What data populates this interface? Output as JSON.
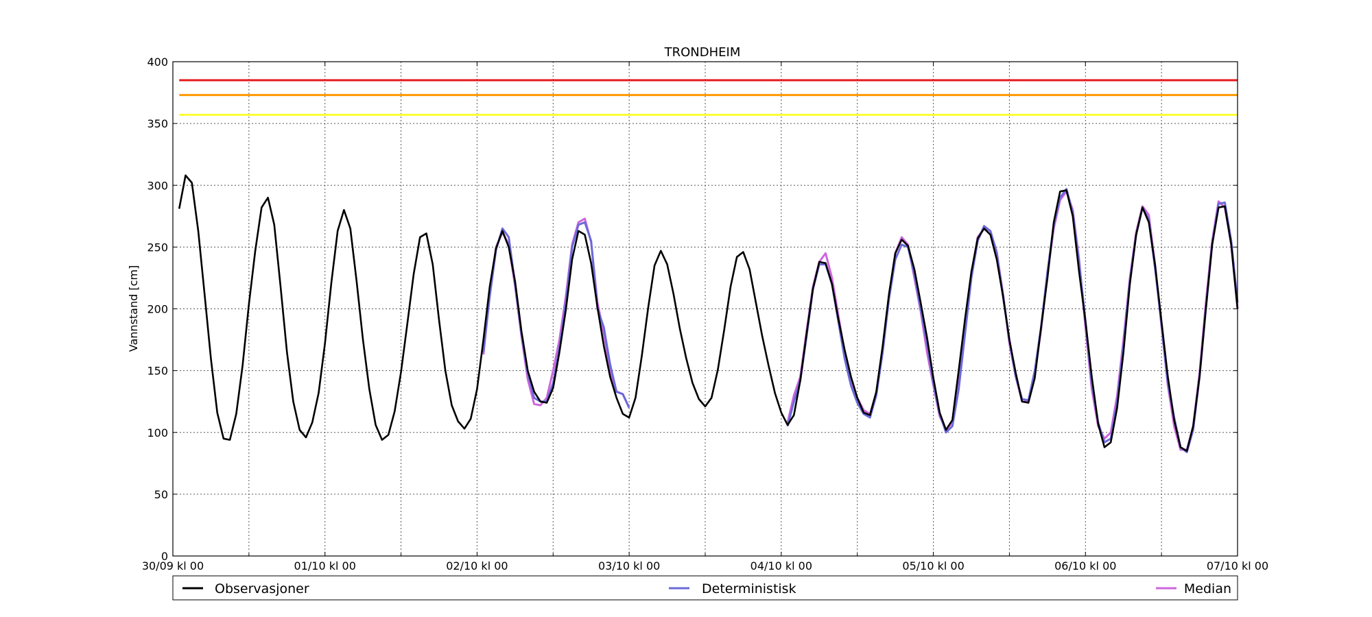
{
  "chart_data": {
    "type": "line",
    "title": "TRONDHEIM",
    "xlabel": "",
    "ylabel": "Vannstand [cm]",
    "ylim": [
      0,
      400
    ],
    "yticks": [
      0,
      50,
      100,
      150,
      200,
      250,
      300,
      350,
      400
    ],
    "xlim_hours": [
      0,
      168
    ],
    "xticks": [
      {
        "hour": 0,
        "label": "30/09 kl 00"
      },
      {
        "hour": 24,
        "label": "01/10 kl 00"
      },
      {
        "hour": 48,
        "label": "02/10 kl 00"
      },
      {
        "hour": 72,
        "label": "03/10 kl 00"
      },
      {
        "hour": 96,
        "label": "04/10 kl 00"
      },
      {
        "hour": 120,
        "label": "05/10 kl 00"
      },
      {
        "hour": 144,
        "label": "06/10 kl 00"
      },
      {
        "hour": 168,
        "label": "07/10 kl 00"
      }
    ],
    "minor_xgrid_hours": [
      12,
      36,
      60,
      84,
      108,
      132,
      156
    ],
    "grid": true,
    "legend_position": "bottom",
    "thresholds": [
      {
        "value": 385,
        "color": "#e41a1c"
      },
      {
        "value": 373,
        "color": "#ff9900"
      },
      {
        "value": 357,
        "color": "#ffff33"
      }
    ],
    "series": [
      {
        "name": "Observasjoner",
        "color": "#000000",
        "x_start_hour": 1,
        "x_step_hour": 1,
        "values": [
          281,
          308,
          302,
          263,
          212,
          160,
          116,
          95,
          94,
          115,
          154,
          204,
          247,
          282,
          290,
          268,
          218,
          165,
          125,
          102,
          96,
          108,
          132,
          172,
          221,
          263,
          280,
          265,
          222,
          175,
          135,
          106,
          94,
          98,
          117,
          149,
          188,
          228,
          258,
          261,
          236,
          191,
          150,
          122,
          109,
          103,
          111,
          135,
          175,
          218,
          249,
          263,
          250,
          222,
          182,
          150,
          133,
          125,
          124,
          136,
          165,
          199,
          240,
          263,
          260,
          237,
          201,
          170,
          145,
          128,
          115,
          112,
          128,
          162,
          201,
          235,
          247,
          236,
          212,
          184,
          160,
          140,
          127,
          121,
          128,
          151,
          183,
          218,
          242,
          246,
          232,
          205,
          178,
          154,
          132,
          116,
          106,
          114,
          142,
          180,
          216,
          238,
          237,
          220,
          192,
          167,
          145,
          128,
          116,
          114,
          133,
          170,
          212,
          245,
          256,
          251,
          232,
          205,
          177,
          144,
          116,
          102,
          110,
          150,
          192,
          230,
          257,
          265,
          260,
          240,
          210,
          175,
          148,
          125,
          124,
          144,
          185,
          225,
          270,
          295,
          296,
          275,
          230,
          190,
          145,
          107,
          88,
          92,
          120,
          165,
          220,
          260,
          282,
          270,
          235,
          190,
          145,
          110,
          88,
          85,
          105,
          145,
          200,
          252,
          282,
          283,
          252,
          200
        ]
      },
      {
        "name": "Deterministisk",
        "color": "#6a6ad9",
        "x_start_hour": 49,
        "x_step_hour": 1,
        "values": [
          165,
          210,
          248,
          265,
          258,
          220,
          180,
          148,
          128,
          125,
          125,
          140,
          168,
          205,
          250,
          268,
          270,
          255,
          200,
          185,
          155,
          133,
          131,
          120,
          null,
          null,
          null,
          null,
          null,
          null,
          null,
          null,
          null,
          null,
          null,
          null,
          null,
          null,
          null,
          null,
          null,
          null,
          null,
          null,
          null,
          null,
          null,
          null,
          105,
          125,
          142,
          178,
          216,
          236,
          236,
          220,
          190,
          160,
          138,
          124,
          115,
          112,
          130,
          165,
          208,
          240,
          252,
          250,
          228,
          200,
          172,
          140,
          115,
          100,
          105,
          135,
          180,
          225,
          255,
          267,
          263,
          245,
          210,
          175,
          145,
          127,
          126,
          150,
          185,
          230,
          268,
          290,
          297,
          278,
          238,
          190,
          140,
          108,
          92,
          95,
          125,
          170,
          222,
          260,
          282,
          272,
          232,
          188,
          140,
          112,
          88,
          84,
          102,
          145,
          200,
          252,
          285,
          286,
          255,
          205
        ]
      },
      {
        "name": "Median",
        "color": "#cc66dd",
        "x_start_hour": 49,
        "x_step_hour": 1,
        "values": [
          163,
          212,
          250,
          262,
          252,
          218,
          178,
          143,
          123,
          122,
          128,
          150,
          175,
          210,
          252,
          270,
          273,
          254,
          205,
          180,
          150,
          133,
          131,
          120,
          null,
          null,
          null,
          null,
          null,
          null,
          null,
          null,
          null,
          null,
          null,
          null,
          null,
          null,
          null,
          null,
          null,
          null,
          null,
          null,
          null,
          null,
          null,
          null,
          108,
          130,
          145,
          182,
          218,
          238,
          245,
          225,
          195,
          165,
          140,
          128,
          118,
          115,
          132,
          168,
          210,
          245,
          258,
          252,
          225,
          198,
          165,
          138,
          113,
          102,
          108,
          140,
          185,
          228,
          258,
          265,
          263,
          246,
          212,
          172,
          145,
          125,
          125,
          148,
          183,
          228,
          265,
          288,
          295,
          280,
          240,
          185,
          135,
          105,
          95,
          100,
          130,
          175,
          225,
          262,
          283,
          276,
          235,
          186,
          138,
          105,
          86,
          86,
          105,
          148,
          205,
          255,
          287,
          282,
          252,
          200
        ]
      }
    ]
  }
}
